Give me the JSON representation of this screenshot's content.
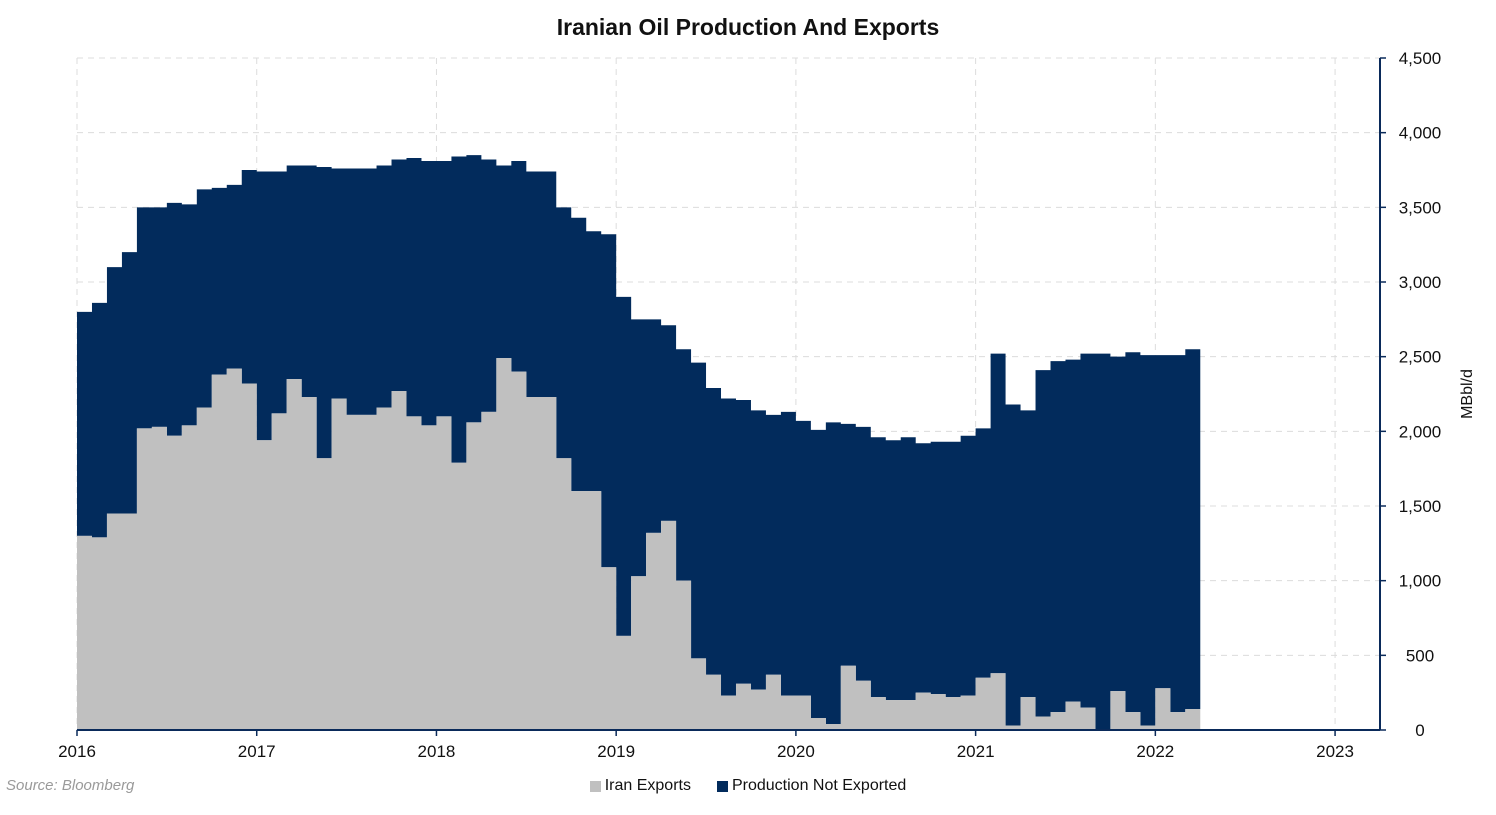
{
  "chart_data": {
    "type": "area",
    "stacked": true,
    "title": "Iranian Oil Production And Exports",
    "source": "Source: Bloomberg",
    "y_axis_label": "MBbl/d",
    "y_axis_position": "right",
    "ylim": [
      0,
      4500
    ],
    "y_ticks": [
      "0",
      "500",
      "1,000",
      "1,500",
      "2,000",
      "2,500",
      "3,000",
      "3,500",
      "4,000",
      "4,500"
    ],
    "y_tick_values": [
      0,
      500,
      1000,
      1500,
      2000,
      2500,
      3000,
      3500,
      4000,
      4500
    ],
    "x_ticks": [
      "2016",
      "2017",
      "2018",
      "2019",
      "2020",
      "2021",
      "2022",
      "2023"
    ],
    "x_tick_values": [
      2016,
      2017,
      2018,
      2019,
      2020,
      2021,
      2022,
      2023
    ],
    "xlim": [
      2016,
      2023.25
    ],
    "grid": true,
    "legend_position": "bottom",
    "x_start": "2016-01",
    "x_step": "monthly",
    "series": [
      {
        "name": "Iran Exports",
        "color": "#c0c0c0",
        "values": [
          1300,
          1290,
          1450,
          1450,
          2020,
          2030,
          1970,
          2040,
          2160,
          2380,
          2420,
          2320,
          1940,
          2120,
          2350,
          2230,
          1820,
          2220,
          2110,
          2110,
          2160,
          2270,
          2100,
          2040,
          2100,
          1790,
          2060,
          2130,
          2490,
          2400,
          2230,
          2230,
          1820,
          1600,
          1600,
          1090,
          630,
          1030,
          1320,
          1400,
          1000,
          480,
          370,
          230,
          310,
          270,
          370,
          230,
          230,
          80,
          40,
          430,
          330,
          220,
          200,
          200,
          250,
          240,
          220,
          230,
          350,
          380,
          30,
          220,
          90,
          120,
          190,
          150,
          0,
          260,
          120,
          30,
          280,
          120,
          140
        ]
      },
      {
        "name": "Production Not Exported",
        "color": "#022b5c",
        "values": [
          1500,
          1570,
          1650,
          1750,
          1480,
          1470,
          1560,
          1480,
          1460,
          1250,
          1230,
          1430,
          1800,
          1620,
          1430,
          1550,
          1950,
          1540,
          1650,
          1650,
          1620,
          1550,
          1730,
          1770,
          1710,
          2050,
          1790,
          1690,
          1290,
          1410,
          1510,
          1510,
          1680,
          1830,
          1740,
          2230,
          2270,
          1720,
          1430,
          1310,
          1550,
          1980,
          1920,
          1990,
          1900,
          1870,
          1740,
          1900,
          1840,
          1930,
          2020,
          1620,
          1700,
          1740,
          1740,
          1760,
          1670,
          1690,
          1710,
          1740,
          1670,
          2140,
          2150,
          1920,
          2320,
          2350,
          2290,
          2370,
          2520,
          2240,
          2410,
          2480,
          2230,
          2390,
          2410
        ]
      }
    ]
  }
}
